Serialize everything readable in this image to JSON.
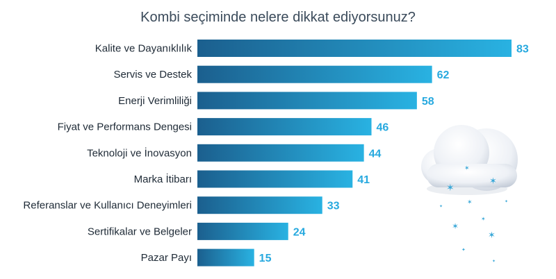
{
  "chart_data": {
    "type": "bar",
    "orientation": "horizontal",
    "title": "Kombi seçiminde nelere dikkat ediyorsunuz?",
    "categories": [
      "Kalite ve Dayanıklılık",
      "Servis ve Destek",
      "Enerji Verimliliği",
      "Fiyat ve Performans Dengesi",
      "Teknoloji ve İnovasyon",
      "Marka İtibarı",
      "Referanslar ve Kullanıcı Deneyimleri",
      "Sertifikalar ve Belgeler",
      "Pazar Payı"
    ],
    "values": [
      83,
      62,
      58,
      46,
      44,
      41,
      33,
      24,
      15
    ],
    "xlim": [
      0,
      83
    ],
    "grid": false,
    "colors": {
      "bar_start": "#1b5f8e",
      "bar_end": "#29b2e2",
      "value_label": "#27a9df",
      "category_label": "#1e2a36"
    }
  },
  "decoration": {
    "icon": "cloud-with-snowflakes-icon"
  }
}
